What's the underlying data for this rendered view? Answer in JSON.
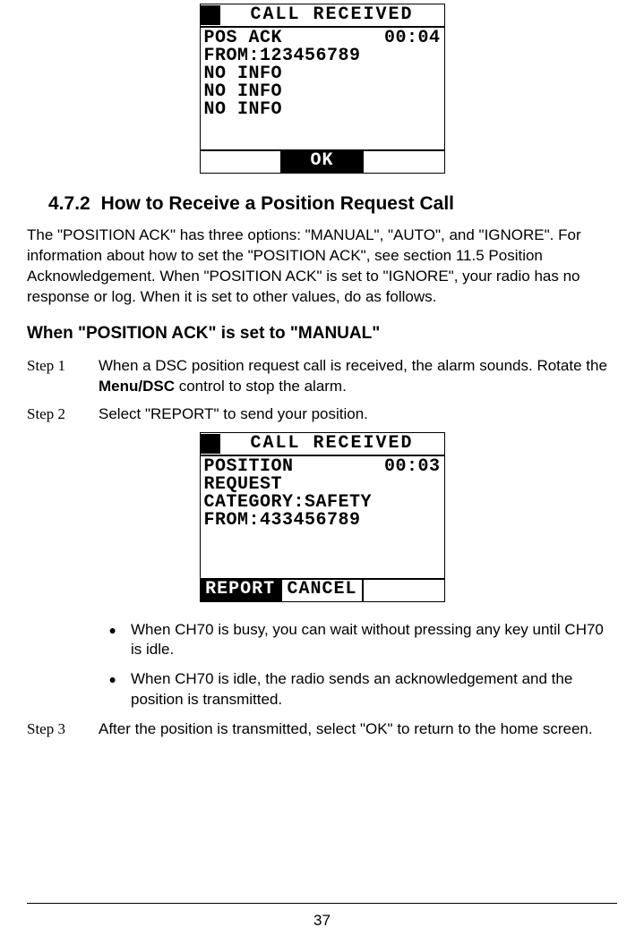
{
  "colors": {
    "bg": "#ffffff",
    "fg": "#000000"
  },
  "lcd1": {
    "title": "CALL RECEIVED",
    "row1_left": "POS ACK",
    "row1_right": "00:04",
    "line2": "FROM:123456789",
    "line3": "NO INFO",
    "line4": "NO INFO",
    "line5": "NO INFO",
    "sk1": "",
    "sk2": "OK",
    "sk3": "",
    "active_sk": 2
  },
  "section": {
    "number": "4.7.2",
    "title": "How to Receive a Position Request Call"
  },
  "intro": "The \"POSITION ACK\" has three options: \"MANUAL\", \"AUTO\", and \"IGNORE\". For information about how to set the \"POSITION ACK\", see section 11.5 Position Acknowledgement. When \"POSITION ACK\" is set to \"IGNORE\", your radio has no response or log. When it is set to other values, do as follows.",
  "sub_heading": "When \"POSITION ACK\" is set to \"MANUAL\"",
  "steps": {
    "s1_label": "Step 1",
    "s1_text_a": "When a DSC position request call is received, the alarm sounds. Rotate the ",
    "s1_bold": "Menu/DSC",
    "s1_text_b": " control to stop the alarm.",
    "s2_label": "Step 2",
    "s2_text": "Select \"REPORT\" to send your position.",
    "s3_label": "Step 3",
    "s3_text": "After the position is transmitted, select \"OK\" to return to the home screen."
  },
  "lcd2": {
    "title": "CALL RECEIVED",
    "row1_left": "POSITION",
    "row1_right": "00:03",
    "line2": "REQUEST",
    "line3": "CATEGORY:SAFETY",
    "line4": "FROM:433456789",
    "line5": "",
    "sk1": "REPORT",
    "sk2": "CANCEL",
    "sk3": "",
    "active_sk": 1
  },
  "bullets": {
    "b1": "When CH70 is busy, you can wait without pressing any key until CH70 is idle.",
    "b2": "When CH70 is idle, the radio sends an acknowledgement and the position is transmitted."
  },
  "page_number": "37"
}
